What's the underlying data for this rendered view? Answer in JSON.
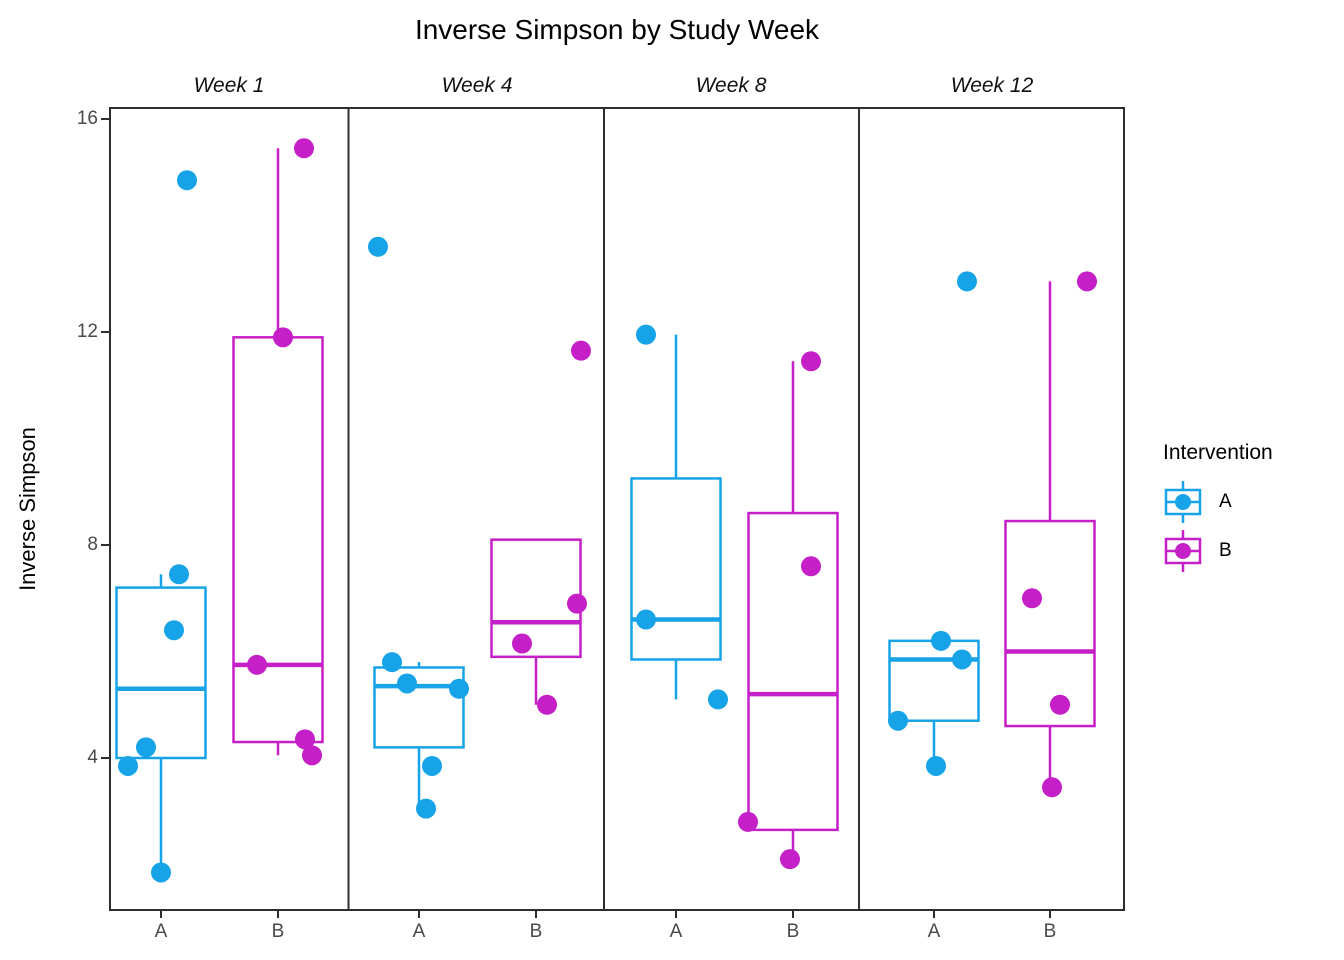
{
  "title": "Inverse Simpson by Study Week",
  "y_axis": {
    "label": "Inverse Simpson",
    "ticks": [
      "16",
      "12",
      "8",
      "4"
    ]
  },
  "x_axis": {
    "groups": [
      "A",
      "B"
    ]
  },
  "legend": {
    "title": "Intervention",
    "items": [
      {
        "label": "A",
        "color": "#16A3E8"
      },
      {
        "label": "B",
        "color": "#C51FC7"
      }
    ]
  },
  "colors": {
    "A": "#16A3E8",
    "B": "#C51FC7",
    "panel_border": "#2E2E2E",
    "axis_text": "#4A4A4A",
    "strip_text": "#111111"
  },
  "chart_data": {
    "type": "boxplot",
    "title": "Inverse Simpson by Study Week",
    "ylabel": "Inverse Simpson",
    "facet_variable": "Study Week",
    "group_variable": "Intervention",
    "y_ticks": [
      4,
      8,
      12,
      16
    ],
    "ylim": [
      1.15,
      16.2
    ],
    "grid": false,
    "legend_position": "right",
    "facets": [
      {
        "label": "Week 1",
        "groups": [
          {
            "name": "A",
            "q1": 4.0,
            "median": 5.3,
            "q3": 7.2,
            "whisker_low": 1.85,
            "whisker_high": 7.45,
            "points": [
              {
                "value": 14.85,
                "jitter": 26
              },
              {
                "value": 7.45,
                "jitter": 18
              },
              {
                "value": 6.4,
                "jitter": 13
              },
              {
                "value": 4.2,
                "jitter": -15
              },
              {
                "value": 3.85,
                "jitter": -33
              },
              {
                "value": 1.85,
                "jitter": 0
              }
            ]
          },
          {
            "name": "B",
            "q1": 4.3,
            "median": 5.75,
            "q3": 11.9,
            "whisker_low": 4.05,
            "whisker_high": 15.45,
            "points": [
              {
                "value": 15.45,
                "jitter": 26
              },
              {
                "value": 11.9,
                "jitter": 5
              },
              {
                "value": 5.75,
                "jitter": -21
              },
              {
                "value": 4.35,
                "jitter": 27
              },
              {
                "value": 4.05,
                "jitter": 34
              }
            ]
          }
        ]
      },
      {
        "label": "Week 4",
        "groups": [
          {
            "name": "A",
            "q1": 4.2,
            "median": 5.35,
            "q3": 5.7,
            "whisker_low": 3.05,
            "whisker_high": 5.8,
            "points": [
              {
                "value": 13.6,
                "jitter": -41
              },
              {
                "value": 5.8,
                "jitter": -27
              },
              {
                "value": 5.4,
                "jitter": -12
              },
              {
                "value": 5.3,
                "jitter": 40
              },
              {
                "value": 3.85,
                "jitter": 13
              },
              {
                "value": 3.05,
                "jitter": 7
              }
            ]
          },
          {
            "name": "B",
            "q1": 5.9,
            "median": 6.55,
            "q3": 8.1,
            "whisker_low": 5.0,
            "whisker_high": null,
            "points": [
              {
                "value": 11.65,
                "jitter": 45
              },
              {
                "value": 6.9,
                "jitter": 41
              },
              {
                "value": 6.15,
                "jitter": -14
              },
              {
                "value": 5.0,
                "jitter": 11
              }
            ]
          }
        ]
      },
      {
        "label": "Week 8",
        "groups": [
          {
            "name": "A",
            "q1": 5.85,
            "median": 6.6,
            "q3": 9.25,
            "whisker_low": 5.1,
            "whisker_high": 11.95,
            "points": [
              {
                "value": 11.95,
                "jitter": -30
              },
              {
                "value": 6.6,
                "jitter": -30
              },
              {
                "value": 5.1,
                "jitter": 42
              }
            ]
          },
          {
            "name": "B",
            "q1": 2.65,
            "median": 5.2,
            "q3": 8.6,
            "whisker_low": 2.1,
            "whisker_high": 11.45,
            "points": [
              {
                "value": 11.45,
                "jitter": 18
              },
              {
                "value": 7.6,
                "jitter": 18
              },
              {
                "value": 2.8,
                "jitter": -45
              },
              {
                "value": 2.1,
                "jitter": -3
              }
            ]
          }
        ]
      },
      {
        "label": "Week 12",
        "groups": [
          {
            "name": "A",
            "q1": 4.7,
            "median": 5.85,
            "q3": 6.2,
            "whisker_low": 3.85,
            "whisker_high": null,
            "points": [
              {
                "value": 12.95,
                "jitter": 33
              },
              {
                "value": 6.2,
                "jitter": 7
              },
              {
                "value": 5.85,
                "jitter": 28
              },
              {
                "value": 4.7,
                "jitter": -36
              },
              {
                "value": 3.85,
                "jitter": 2
              }
            ]
          },
          {
            "name": "B",
            "q1": 4.6,
            "median": 6.0,
            "q3": 8.45,
            "whisker_low": 3.45,
            "whisker_high": 12.95,
            "points": [
              {
                "value": 12.95,
                "jitter": 37
              },
              {
                "value": 7.0,
                "jitter": -18
              },
              {
                "value": 5.0,
                "jitter": 10
              },
              {
                "value": 3.45,
                "jitter": 2
              }
            ]
          }
        ]
      }
    ]
  }
}
